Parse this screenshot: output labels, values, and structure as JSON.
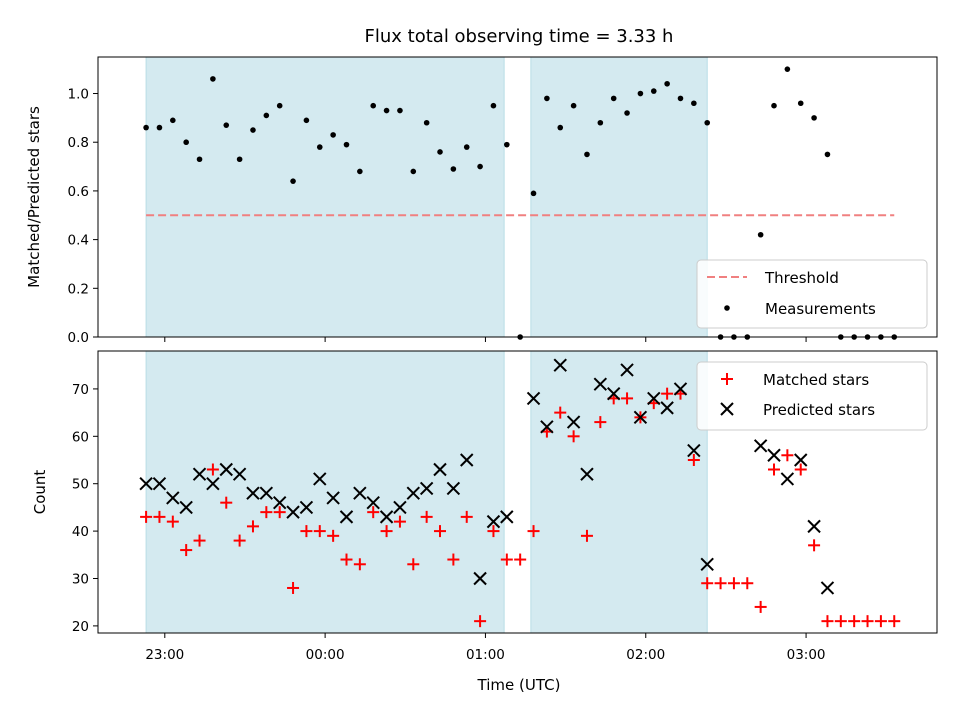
{
  "chart_data": [
    {
      "type": "scatter",
      "title": "Flux total observing time = 3.33 h",
      "xlabel": "",
      "ylabel": "Matched/Predicted stars",
      "ylim": [
        0,
        1.15
      ],
      "yticks": [
        "0.0",
        "0.2",
        "0.4",
        "0.6",
        "0.8",
        "1.0"
      ],
      "xlim": [
        "22:35",
        "03:49"
      ],
      "shaded_intervals": [
        [
          "22:53",
          "01:07"
        ],
        [
          "01:17",
          "02:23"
        ]
      ],
      "shade_color": "#d4eaf0",
      "threshold": {
        "name": "Threshold",
        "value": 0.5,
        "x_range": [
          "22:53",
          "03:33"
        ],
        "color": "#f08080"
      },
      "series": [
        {
          "name": "Measurements",
          "color": "#000000",
          "x": [
            "22:53",
            "22:58",
            "23:03",
            "23:08",
            "23:13",
            "23:18",
            "23:23",
            "23:28",
            "23:33",
            "23:38",
            "23:43",
            "23:48",
            "23:53",
            "23:58",
            "00:03",
            "00:08",
            "00:13",
            "00:18",
            "00:23",
            "00:28",
            "00:33",
            "00:38",
            "00:43",
            "00:48",
            "00:53",
            "00:58",
            "01:03",
            "01:08",
            "01:13",
            "01:18",
            "01:23",
            "01:28",
            "01:33",
            "01:38",
            "01:43",
            "01:48",
            "01:53",
            "01:58",
            "02:03",
            "02:08",
            "02:13",
            "02:18",
            "02:23",
            "02:28",
            "02:33",
            "02:38",
            "02:43",
            "02:48",
            "02:53",
            "02:58",
            "03:03",
            "03:08",
            "03:13",
            "03:18",
            "03:23",
            "03:28",
            "03:33"
          ],
          "y": [
            0.86,
            0.86,
            0.89,
            0.8,
            0.73,
            1.06,
            0.87,
            0.73,
            0.85,
            0.91,
            0.95,
            0.64,
            0.89,
            0.78,
            0.83,
            0.79,
            0.68,
            0.95,
            0.93,
            0.93,
            0.68,
            0.88,
            0.76,
            0.69,
            0.78,
            0.7,
            0.95,
            0.79,
            0.0,
            0.59,
            0.98,
            0.86,
            0.95,
            0.75,
            0.88,
            0.98,
            0.92,
            1.0,
            1.01,
            1.04,
            0.98,
            0.96,
            0.88,
            0.0,
            0.0,
            0.0,
            0.42,
            0.95,
            1.1,
            0.96,
            0.9,
            0.75,
            0.0,
            0.0,
            0.0,
            0.0,
            0.0
          ]
        }
      ]
    },
    {
      "type": "scatter",
      "xlabel": "Time (UTC)",
      "ylabel": "Count",
      "ylim": [
        18.5,
        78
      ],
      "yticks": [
        "20",
        "30",
        "40",
        "50",
        "60",
        "70"
      ],
      "xticks": [
        "23:00",
        "00:00",
        "01:00",
        "02:00",
        "03:00"
      ],
      "xlim": [
        "22:35",
        "03:49"
      ],
      "shaded_intervals": [
        [
          "22:53",
          "01:07"
        ],
        [
          "01:17",
          "02:23"
        ]
      ],
      "series": [
        {
          "name": "Matched stars",
          "marker": "plus",
          "color": "#ff0000",
          "x": [
            "22:53",
            "22:58",
            "23:03",
            "23:08",
            "23:13",
            "23:18",
            "23:23",
            "23:28",
            "23:33",
            "23:38",
            "23:43",
            "23:48",
            "23:53",
            "23:58",
            "00:03",
            "00:08",
            "00:13",
            "00:18",
            "00:23",
            "00:28",
            "00:33",
            "00:38",
            "00:43",
            "00:48",
            "00:53",
            "00:58",
            "01:03",
            "01:08",
            "01:13",
            "01:18",
            "01:23",
            "01:28",
            "01:33",
            "01:38",
            "01:43",
            "01:48",
            "01:53",
            "01:58",
            "02:03",
            "02:08",
            "02:13",
            "02:18",
            "02:23",
            "02:28",
            "02:33",
            "02:38",
            "02:43",
            "02:48",
            "02:53",
            "02:58",
            "03:03",
            "03:08",
            "03:13",
            "03:18",
            "03:23",
            "03:28",
            "03:33"
          ],
          "y": [
            43,
            43,
            42,
            36,
            38,
            53,
            46,
            38,
            41,
            44,
            44,
            28,
            40,
            40,
            39,
            34,
            33,
            44,
            40,
            42,
            33,
            43,
            40,
            34,
            43,
            21,
            40,
            34,
            34,
            40,
            61,
            65,
            60,
            39,
            63,
            68,
            68,
            64,
            67,
            69,
            69,
            55,
            29,
            29,
            29,
            29,
            24,
            53,
            56,
            53,
            37,
            21,
            21,
            21,
            21,
            21,
            21
          ]
        },
        {
          "name": "Predicted stars",
          "marker": "x",
          "color": "#000000",
          "x": [
            "22:53",
            "22:58",
            "23:03",
            "23:08",
            "23:13",
            "23:18",
            "23:23",
            "23:28",
            "23:33",
            "23:38",
            "23:43",
            "23:48",
            "23:53",
            "23:58",
            "00:03",
            "00:08",
            "00:13",
            "00:18",
            "00:23",
            "00:28",
            "00:33",
            "00:38",
            "00:43",
            "00:48",
            "00:53",
            "00:58",
            "01:03",
            "01:08",
            "01:18",
            "01:23",
            "01:28",
            "01:33",
            "01:38",
            "01:43",
            "01:48",
            "01:53",
            "01:58",
            "02:03",
            "02:08",
            "02:13",
            "02:18",
            "02:23",
            "02:43",
            "02:48",
            "02:53",
            "02:58",
            "03:03",
            "03:08"
          ],
          "y": [
            50,
            50,
            47,
            45,
            52,
            50,
            53,
            52,
            48,
            48,
            46,
            44,
            45,
            51,
            47,
            43,
            48,
            46,
            43,
            45,
            48,
            49,
            53,
            49,
            55,
            30,
            42,
            43,
            68,
            62,
            75,
            63,
            52,
            71,
            69,
            74,
            64,
            68,
            66,
            70,
            57,
            33,
            58,
            56,
            51,
            55,
            41,
            28
          ]
        }
      ]
    }
  ]
}
